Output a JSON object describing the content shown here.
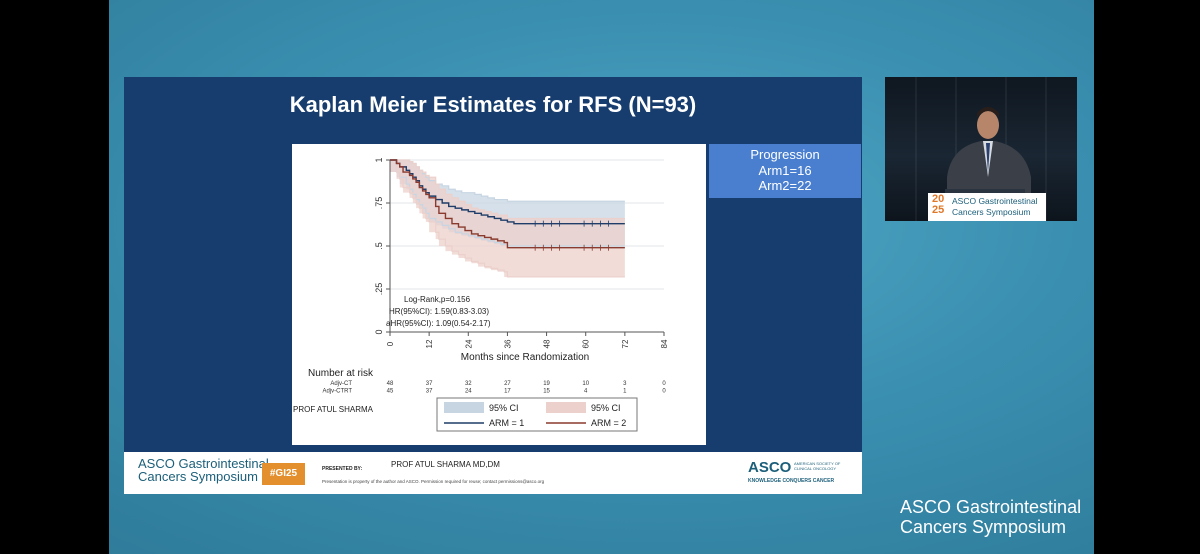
{
  "slide": {
    "title": "Kaplan Meier Estimates for RFS (N=93)",
    "progression": {
      "heading": "Progression",
      "arm1": "Arm1=16",
      "arm2": "Arm2=22"
    }
  },
  "chart_data": {
    "type": "line",
    "xlabel": "Months since Randomization",
    "ylabel": "",
    "xlim": [
      0,
      84
    ],
    "ylim": [
      0,
      1
    ],
    "x_ticks": [
      0,
      12,
      24,
      36,
      48,
      60,
      72,
      84
    ],
    "y_ticks": [
      "0",
      ".25",
      ".5",
      ".75",
      "1"
    ],
    "series": [
      {
        "name": "ARM = 1",
        "color": "#1f3d68",
        "ci_color": "#c7d5e3",
        "x": [
          0,
          2,
          3,
          5,
          6,
          7,
          8,
          9,
          10,
          11,
          12,
          14,
          16,
          18,
          20,
          22,
          24,
          26,
          28,
          30,
          32,
          34,
          36,
          38,
          72
        ],
        "y": [
          1,
          0.98,
          0.96,
          0.94,
          0.92,
          0.9,
          0.88,
          0.85,
          0.83,
          0.81,
          0.79,
          0.77,
          0.75,
          0.73,
          0.72,
          0.71,
          0.7,
          0.69,
          0.68,
          0.67,
          0.66,
          0.65,
          0.64,
          0.63,
          0.63
        ],
        "ci_upper": [
          1,
          1,
          1,
          1,
          0.99,
          0.98,
          0.96,
          0.94,
          0.92,
          0.9,
          0.88,
          0.86,
          0.85,
          0.83,
          0.82,
          0.81,
          0.81,
          0.8,
          0.79,
          0.78,
          0.77,
          0.77,
          0.76,
          0.76,
          0.76
        ],
        "ci_lower": [
          1,
          0.93,
          0.9,
          0.86,
          0.83,
          0.8,
          0.77,
          0.74,
          0.72,
          0.69,
          0.66,
          0.64,
          0.62,
          0.6,
          0.58,
          0.57,
          0.56,
          0.55,
          0.54,
          0.53,
          0.52,
          0.51,
          0.5,
          0.5,
          0.5
        ]
      },
      {
        "name": "ARM = 2",
        "color": "#8a3a2e",
        "ci_color": "#ecd0cb",
        "x": [
          0,
          2,
          3,
          4,
          6,
          7,
          8,
          9,
          10,
          11,
          12,
          14,
          15,
          17,
          19,
          21,
          23,
          25,
          27,
          29,
          31,
          33,
          35,
          36,
          72
        ],
        "y": [
          1,
          0.98,
          0.96,
          0.93,
          0.91,
          0.89,
          0.87,
          0.84,
          0.82,
          0.8,
          0.78,
          0.73,
          0.69,
          0.66,
          0.63,
          0.61,
          0.59,
          0.57,
          0.56,
          0.55,
          0.54,
          0.53,
          0.52,
          0.49,
          0.49
        ],
        "ci_upper": [
          1,
          1,
          1,
          1,
          0.99,
          0.98,
          0.96,
          0.94,
          0.93,
          0.91,
          0.9,
          0.86,
          0.83,
          0.8,
          0.78,
          0.76,
          0.74,
          0.72,
          0.71,
          0.7,
          0.69,
          0.68,
          0.68,
          0.66,
          0.66
        ],
        "ci_lower": [
          1,
          0.93,
          0.89,
          0.84,
          0.81,
          0.78,
          0.75,
          0.72,
          0.69,
          0.66,
          0.64,
          0.58,
          0.54,
          0.5,
          0.47,
          0.45,
          0.43,
          0.41,
          0.4,
          0.38,
          0.37,
          0.36,
          0.35,
          0.32,
          0.32
        ]
      }
    ],
    "annotations": [
      "Log-Rank,p=0.156",
      "HR(95%CI): 1.59(0.83-3.03)",
      "aHR(95%CI): 1.09(0.54-2.17)"
    ],
    "risk_table": {
      "title": "Number at risk",
      "rows": [
        {
          "label": "Adjv-CT",
          "values": [
            "48",
            "37",
            "32",
            "27",
            "19",
            "10",
            "3",
            "0"
          ]
        },
        {
          "label": "Adjv-CTRT",
          "values": [
            "45",
            "37",
            "24",
            "17",
            "15",
            "4",
            "1",
            "0"
          ]
        }
      ]
    },
    "legend": {
      "entries": [
        "95% CI",
        "95% CI",
        "ARM = 1",
        "ARM = 2"
      ],
      "placement": "bottom"
    },
    "author_label": "PROF ATUL SHARMA"
  },
  "footer": {
    "brand_line1": "ASCO Gastrointestinal",
    "brand_line2": "Cancers Symposium",
    "hashtag": "#GI25",
    "presented_by_label": "PRESENTED BY:",
    "presenter": "PROF ATUL SHARMA MD,DM",
    "disclaimer": "Presentation is property of the author and ASCO. Permission required for reuse; contact permissions@asco.org",
    "asco_logo": "ASCO",
    "asco_subtitle_1": "AMERICAN SOCIETY OF",
    "asco_subtitle_2": "CLINICAL ONCOLOGY",
    "asco_tagline": "KNOWLEDGE CONQUERS CANCER"
  },
  "video": {
    "podium_year_top": "20",
    "podium_year_bottom": "25",
    "podium_line1": "ASCO Gastrointestinal",
    "podium_line2": "Cancers Symposium"
  },
  "watermark": {
    "line1": "ASCO Gastrointestinal",
    "line2": "Cancers Symposium"
  }
}
